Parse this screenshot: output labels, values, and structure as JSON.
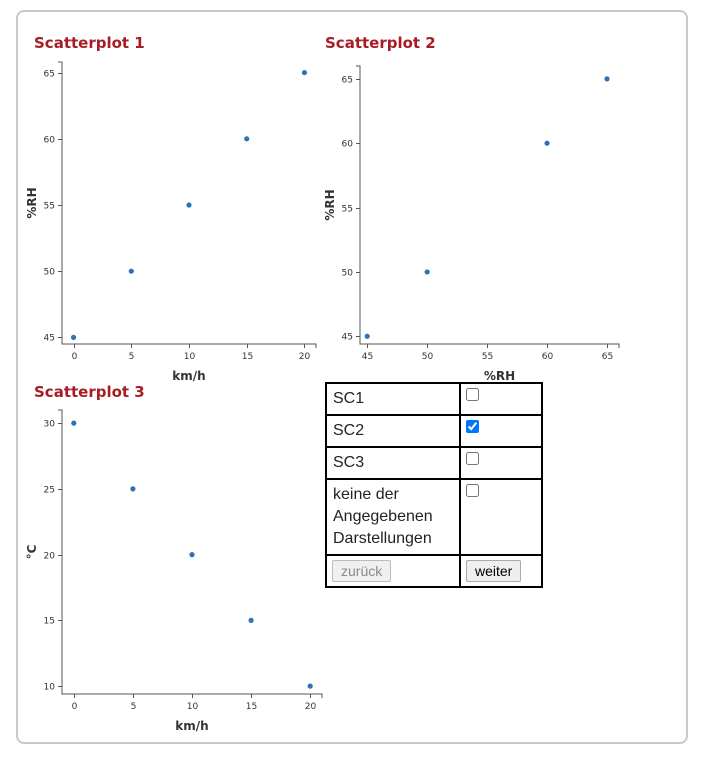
{
  "colors": {
    "title": "#a81c23",
    "point": "#2f72b8",
    "border": "#c9c9c9"
  },
  "plots": [
    {
      "title": "Scatterplot 1"
    },
    {
      "title": "Scatterplot 2"
    },
    {
      "title": "Scatterplot 3"
    }
  ],
  "chart_data": [
    {
      "type": "scatter",
      "title": "Scatterplot 1",
      "xlabel": "km/h",
      "ylabel": "%RH",
      "xlim": [
        -1,
        21
      ],
      "ylim": [
        44.5,
        65.8
      ],
      "xticks": [
        "0",
        "5",
        "10",
        "15",
        "20"
      ],
      "yticks": [
        "45",
        "50",
        "55",
        "60",
        "65"
      ],
      "x": [
        0,
        5,
        10,
        15,
        20
      ],
      "y": [
        45,
        50,
        55,
        60,
        65
      ]
    },
    {
      "type": "scatter",
      "title": "Scatterplot 2",
      "xlabel": "%RH",
      "ylabel": "%RH",
      "xlim": [
        44.4,
        66
      ],
      "ylim": [
        44.4,
        66
      ],
      "xticks": [
        "45",
        "50",
        "55",
        "60",
        "65"
      ],
      "yticks": [
        "45",
        "50",
        "55",
        "60",
        "65"
      ],
      "x": [
        45,
        50,
        60,
        65
      ],
      "y": [
        45,
        50,
        60,
        65
      ]
    },
    {
      "type": "scatter",
      "title": "Scatterplot 3",
      "xlabel": "km/h",
      "ylabel": "°C",
      "xlim": [
        -1,
        21
      ],
      "ylim": [
        9.4,
        31
      ],
      "xticks": [
        "0",
        "5",
        "10",
        "15",
        "20"
      ],
      "yticks": [
        "10",
        "15",
        "20",
        "25",
        "30"
      ],
      "x": [
        0,
        5,
        10,
        15,
        20
      ],
      "y": [
        30,
        25,
        20,
        15,
        10
      ]
    }
  ],
  "choices": [
    {
      "label": "SC1",
      "checked": false
    },
    {
      "label": "SC2",
      "checked": true
    },
    {
      "label": "SC3",
      "checked": false
    },
    {
      "label": "keine der Angegebenen Darstellungen",
      "checked": false
    }
  ],
  "nav": {
    "back_label": "zurück",
    "back_enabled": false,
    "next_label": "weiter"
  }
}
